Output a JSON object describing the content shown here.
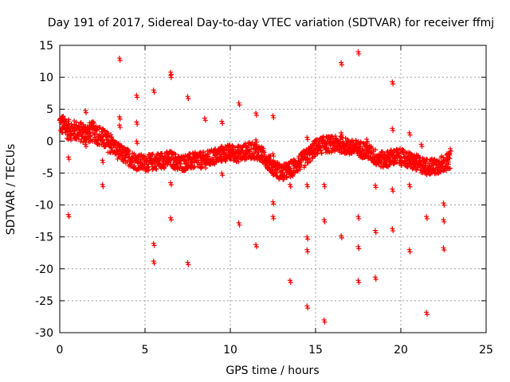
{
  "chart_data": {
    "type": "scatter",
    "title": "Day 191 of 2017, Sidereal Day-to-day VTEC variation (SDTVAR) for receiver ffmj",
    "xlabel": "GPS time / hours",
    "ylabel": "SDTVAR / TECUs",
    "xlim": [
      0,
      25
    ],
    "ylim": [
      -30,
      15
    ],
    "x_ticks": [
      0,
      5,
      10,
      15,
      20,
      25
    ],
    "y_ticks": [
      -30,
      -25,
      -20,
      -15,
      -10,
      -5,
      0,
      5,
      10,
      15
    ],
    "grid": true,
    "marker": "+",
    "color": "#ff0000",
    "band": [
      [
        0.0,
        2.8
      ],
      [
        0.5,
        1.8
      ],
      [
        1.0,
        1.6
      ],
      [
        1.5,
        1.2
      ],
      [
        2.0,
        1.5
      ],
      [
        2.5,
        0.5
      ],
      [
        3.0,
        -0.5
      ],
      [
        3.5,
        -1.8
      ],
      [
        4.0,
        -2.5
      ],
      [
        4.5,
        -3.2
      ],
      [
        5.0,
        -3.5
      ],
      [
        5.5,
        -3.2
      ],
      [
        6.0,
        -3.0
      ],
      [
        6.5,
        -2.8
      ],
      [
        7.0,
        -3.5
      ],
      [
        7.5,
        -3.3
      ],
      [
        8.0,
        -3.0
      ],
      [
        8.5,
        -3.0
      ],
      [
        9.0,
        -2.5
      ],
      [
        9.5,
        -2.0
      ],
      [
        10.0,
        -1.8
      ],
      [
        10.5,
        -2.0
      ],
      [
        11.0,
        -1.5
      ],
      [
        11.5,
        -1.5
      ],
      [
        12.0,
        -2.5
      ],
      [
        12.5,
        -4.0
      ],
      [
        13.0,
        -5.0
      ],
      [
        13.5,
        -4.5
      ],
      [
        14.0,
        -3.5
      ],
      [
        14.5,
        -2.5
      ],
      [
        15.0,
        -1.0
      ],
      [
        15.5,
        -0.5
      ],
      [
        16.0,
        -0.5
      ],
      [
        16.5,
        -0.5
      ],
      [
        17.0,
        -1.0
      ],
      [
        17.5,
        -1.2
      ],
      [
        18.0,
        -1.5
      ],
      [
        18.5,
        -2.5
      ],
      [
        19.0,
        -3.0
      ],
      [
        19.5,
        -2.5
      ],
      [
        20.0,
        -2.5
      ],
      [
        20.5,
        -3.0
      ],
      [
        21.0,
        -3.5
      ],
      [
        21.5,
        -4.0
      ],
      [
        22.0,
        -4.0
      ],
      [
        22.5,
        -3.5
      ],
      [
        22.9,
        -3.0
      ]
    ],
    "outliers": [
      [
        0.5,
        -11.5
      ],
      [
        0.5,
        -2.5
      ],
      [
        1.5,
        4.8
      ],
      [
        2.5,
        -6.8
      ],
      [
        2.5,
        -3.0
      ],
      [
        3.5,
        13.0
      ],
      [
        3.5,
        3.8
      ],
      [
        3.5,
        2.5
      ],
      [
        4.5,
        7.2
      ],
      [
        4.5,
        3.0
      ],
      [
        5.5,
        8.0
      ],
      [
        5.5,
        -16.0
      ],
      [
        5.5,
        -18.8
      ],
      [
        6.5,
        10.8
      ],
      [
        6.5,
        10.3
      ],
      [
        6.5,
        -6.5
      ],
      [
        6.5,
        -12.0
      ],
      [
        7.5,
        7.0
      ],
      [
        7.5,
        -19.0
      ],
      [
        8.5,
        3.6
      ],
      [
        9.5,
        3.1
      ],
      [
        9.5,
        -5.0
      ],
      [
        10.5,
        6.0
      ],
      [
        10.5,
        -12.8
      ],
      [
        11.5,
        4.4
      ],
      [
        11.5,
        -16.2
      ],
      [
        12.5,
        4.0
      ],
      [
        12.5,
        -9.5
      ],
      [
        12.5,
        -11.8
      ],
      [
        13.5,
        -21.8
      ],
      [
        13.5,
        -6.8
      ],
      [
        14.5,
        0.6
      ],
      [
        14.5,
        -6.8
      ],
      [
        14.5,
        -15.0
      ],
      [
        14.5,
        -17.0
      ],
      [
        14.5,
        -25.8
      ],
      [
        15.5,
        -6.8
      ],
      [
        15.5,
        -12.3
      ],
      [
        15.5,
        -28.0
      ],
      [
        16.5,
        12.3
      ],
      [
        16.5,
        1.3
      ],
      [
        16.5,
        -14.8
      ],
      [
        17.5,
        14.0
      ],
      [
        17.5,
        -11.8
      ],
      [
        17.5,
        -16.5
      ],
      [
        17.5,
        -21.8
      ],
      [
        18.5,
        -6.9
      ],
      [
        18.5,
        -14.0
      ],
      [
        18.5,
        -21.3
      ],
      [
        19.5,
        9.3
      ],
      [
        19.5,
        2.0
      ],
      [
        19.5,
        -7.5
      ],
      [
        19.5,
        -13.7
      ],
      [
        20.5,
        1.3
      ],
      [
        20.5,
        -6.8
      ],
      [
        20.5,
        -17.0
      ],
      [
        21.5,
        -11.8
      ],
      [
        21.5,
        -26.8
      ],
      [
        22.5,
        -9.7
      ],
      [
        22.5,
        -12.3
      ],
      [
        22.5,
        -16.7
      ],
      [
        0.3,
        3.5
      ],
      [
        0.1,
        3.2
      ],
      [
        22.9,
        -1.2
      ],
      [
        1.5,
        -0.5
      ],
      [
        3.0,
        1.0
      ],
      [
        4.5,
        0.0
      ],
      [
        11.5,
        0.2
      ],
      [
        12.5,
        -2.0
      ],
      [
        14.3,
        -1.5
      ],
      [
        18.0,
        0.3
      ],
      [
        21.2,
        -0.5
      ]
    ]
  }
}
